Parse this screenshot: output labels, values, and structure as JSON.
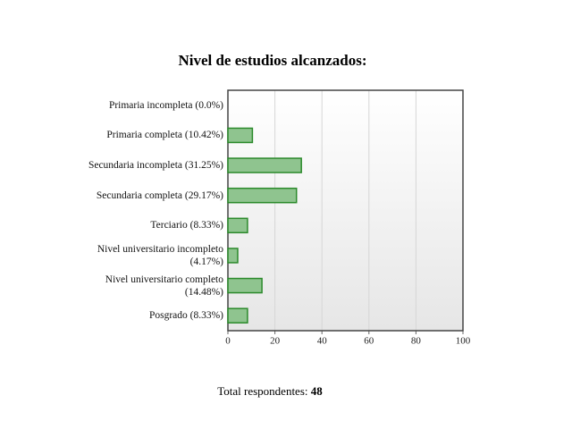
{
  "chart_data": {
    "type": "barh",
    "title": "Nivel de estudios alcanzados:",
    "categories": [
      "Primaria incompleta (0.0%)",
      "Primaria completa (10.42%)",
      "Secundaria incompleta (31.25%)",
      "Secundaria completa (29.17%)",
      "Terciario (8.33%)",
      "Nivel universitario incompleto (4.17%)",
      "Nivel universitario completo (14.48%)",
      "Posgrado (8.33%)"
    ],
    "values": [
      0,
      10.42,
      31.25,
      29.17,
      8.33,
      4.17,
      14.48,
      8.33
    ],
    "color": "#8fc48f",
    "edge_color": "#2b8a2b",
    "xlim": [
      0,
      100
    ],
    "xticks": [
      0,
      20,
      40,
      60,
      80,
      100
    ],
    "grid": true
  },
  "footer": {
    "label": "Total respondentes:",
    "value": 48
  }
}
